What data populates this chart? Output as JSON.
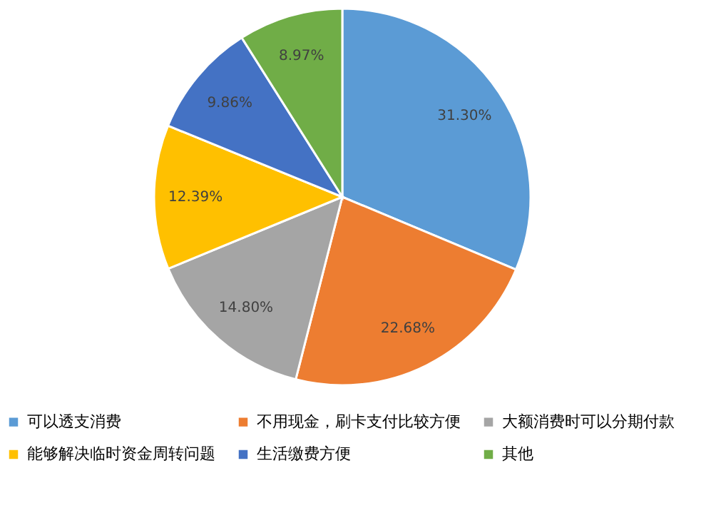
{
  "chart_data": {
    "type": "pie",
    "categories": [
      "可以透支消费",
      "不用现金，刷卡支付比较方便",
      "大额消费时可以分期付款",
      "能够解决临时资金周转问题",
      "生活缴费方便",
      "其他"
    ],
    "values": [
      31.3,
      22.68,
      14.8,
      12.39,
      9.86,
      8.97
    ],
    "value_labels": [
      "31.30%",
      "22.68%",
      "14.80%",
      "12.39%",
      "9.86%",
      "8.97%"
    ],
    "colors": [
      "#5b9bd5",
      "#ed7d31",
      "#a5a5a5",
      "#ffc000",
      "#4472c4",
      "#70ad47"
    ],
    "legend": "bottom"
  }
}
